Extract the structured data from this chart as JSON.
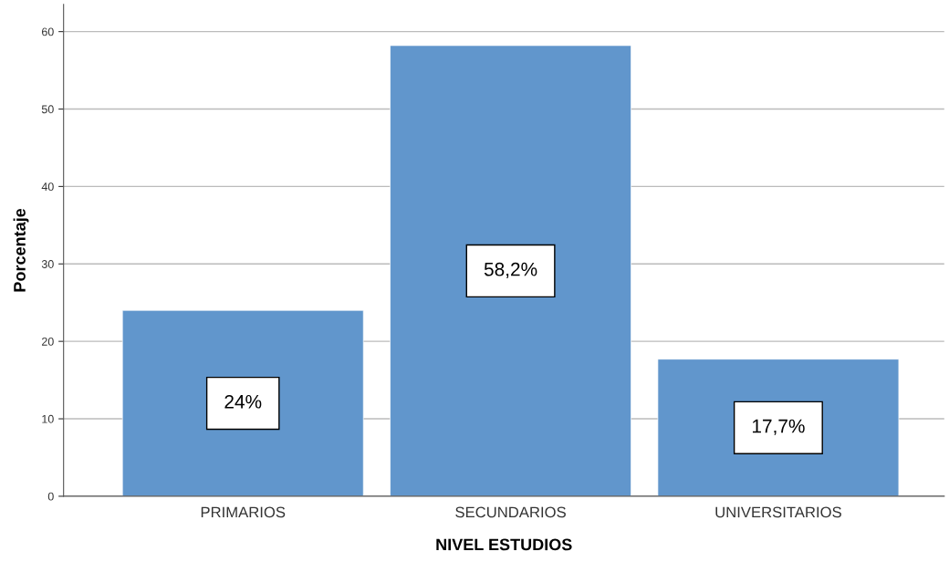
{
  "chart_data": {
    "type": "bar",
    "xlabel": "NIVEL ESTUDIOS",
    "ylabel": "Porcentaje",
    "categories": [
      "PRIMARIOS",
      "SECUNDARIOS",
      "UNIVERSITARIOS"
    ],
    "values": [
      24,
      58.2,
      17.7
    ],
    "value_labels": [
      "24%",
      "58,2%",
      "17,7%"
    ],
    "color": "#6196cc",
    "ylim": [
      0,
      63.5
    ],
    "yticks": [
      0,
      10,
      20,
      30,
      40,
      50,
      60
    ],
    "grid": "y"
  }
}
